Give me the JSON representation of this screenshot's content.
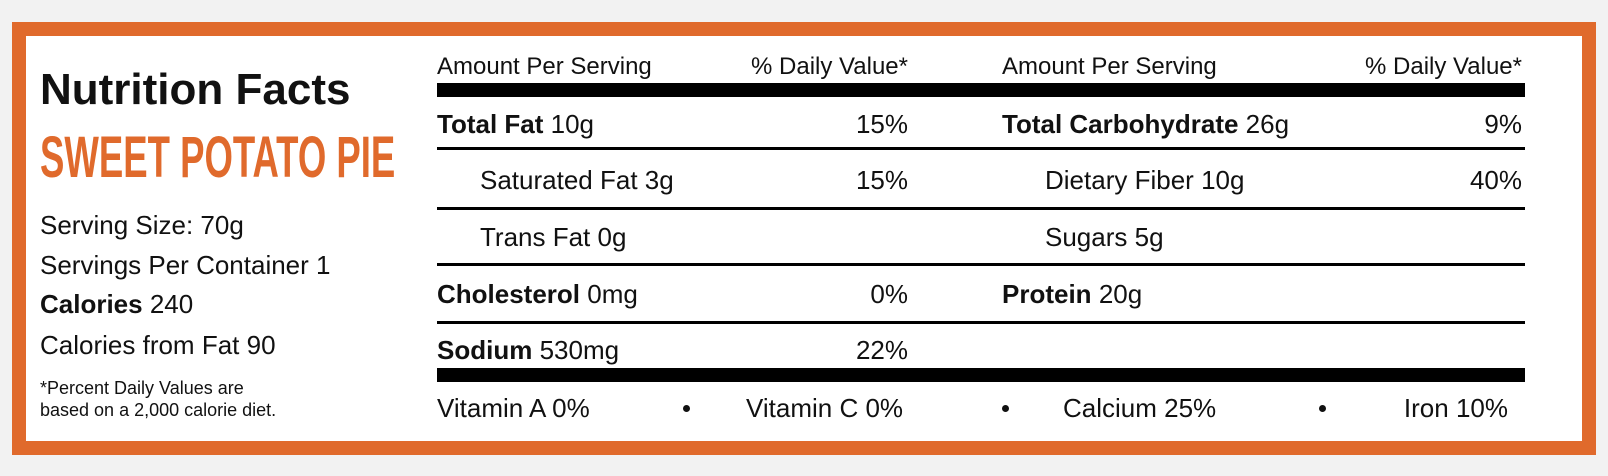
{
  "header": {
    "title": "Nutrition Facts",
    "product": "SWEET POTATO PIE"
  },
  "serving": [
    {
      "label": "Serving Size:",
      "value": "70g"
    },
    {
      "label": "Servings Per Container",
      "value": "1"
    },
    {
      "label": "Calories",
      "value": "240"
    },
    {
      "label": "Calories from Fat",
      "value": "90"
    }
  ],
  "footnote": [
    "*Percent Daily Values are",
    "based on a 2,000 calorie diet."
  ],
  "tables": [
    {
      "headers": [
        "Amount Per Serving",
        "% Daily Value*"
      ],
      "rows": [
        {
          "label": "Total Fat",
          "amount": "10g",
          "dv": "15%"
        },
        {
          "label": "Saturated Fat",
          "amount": "3g",
          "dv": "15%"
        },
        {
          "label": "Trans Fat",
          "amount": "0g"
        },
        {
          "label": "Cholesterol",
          "amount": "0mg",
          "dv": "0%"
        },
        {
          "label": "Sodium",
          "amount": "530mg",
          "dv": "22%"
        }
      ]
    },
    {
      "headers": [
        "Amount Per Serving",
        "% Daily Value*"
      ],
      "rows": [
        {
          "label": "Total Carbohydrate",
          "amount": "26g",
          "dv": "9%"
        },
        {
          "label": "Dietary Fiber",
          "amount": "10g",
          "dv": "40%"
        },
        {
          "label": "Sugars",
          "amount": "5g"
        },
        {
          "label": "Protein",
          "amount": "20g"
        }
      ]
    }
  ],
  "vitamins": [
    "Vitamin A 0%",
    "Vitamin C 0%",
    "Calcium 25%",
    "Iron 10%"
  ]
}
